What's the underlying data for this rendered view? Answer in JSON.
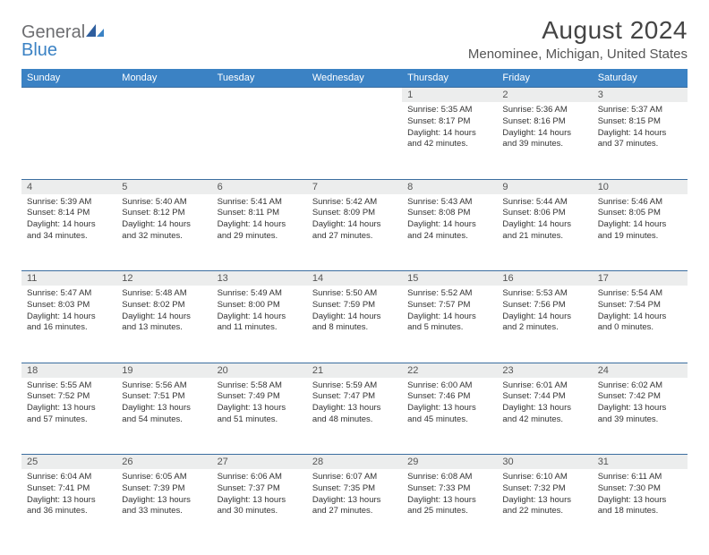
{
  "brand": {
    "name1": "General",
    "name2": "Blue"
  },
  "title": "August 2024",
  "location": "Menominee, Michigan, United States",
  "colors": {
    "header_bg": "#3b82c4",
    "header_text": "#ffffff",
    "daynum_bg": "#eceded",
    "row_border": "#3b6ea0",
    "logo_gray": "#6d6e71",
    "logo_blue": "#3b82c4"
  },
  "weekdays": [
    "Sunday",
    "Monday",
    "Tuesday",
    "Wednesday",
    "Thursday",
    "Friday",
    "Saturday"
  ],
  "weeks": [
    [
      null,
      null,
      null,
      null,
      {
        "n": "1",
        "sunrise": "5:35 AM",
        "sunset": "8:17 PM",
        "dl1": "Daylight: 14 hours",
        "dl2": "and 42 minutes."
      },
      {
        "n": "2",
        "sunrise": "5:36 AM",
        "sunset": "8:16 PM",
        "dl1": "Daylight: 14 hours",
        "dl2": "and 39 minutes."
      },
      {
        "n": "3",
        "sunrise": "5:37 AM",
        "sunset": "8:15 PM",
        "dl1": "Daylight: 14 hours",
        "dl2": "and 37 minutes."
      }
    ],
    [
      {
        "n": "4",
        "sunrise": "5:39 AM",
        "sunset": "8:14 PM",
        "dl1": "Daylight: 14 hours",
        "dl2": "and 34 minutes."
      },
      {
        "n": "5",
        "sunrise": "5:40 AM",
        "sunset": "8:12 PM",
        "dl1": "Daylight: 14 hours",
        "dl2": "and 32 minutes."
      },
      {
        "n": "6",
        "sunrise": "5:41 AM",
        "sunset": "8:11 PM",
        "dl1": "Daylight: 14 hours",
        "dl2": "and 29 minutes."
      },
      {
        "n": "7",
        "sunrise": "5:42 AM",
        "sunset": "8:09 PM",
        "dl1": "Daylight: 14 hours",
        "dl2": "and 27 minutes."
      },
      {
        "n": "8",
        "sunrise": "5:43 AM",
        "sunset": "8:08 PM",
        "dl1": "Daylight: 14 hours",
        "dl2": "and 24 minutes."
      },
      {
        "n": "9",
        "sunrise": "5:44 AM",
        "sunset": "8:06 PM",
        "dl1": "Daylight: 14 hours",
        "dl2": "and 21 minutes."
      },
      {
        "n": "10",
        "sunrise": "5:46 AM",
        "sunset": "8:05 PM",
        "dl1": "Daylight: 14 hours",
        "dl2": "and 19 minutes."
      }
    ],
    [
      {
        "n": "11",
        "sunrise": "5:47 AM",
        "sunset": "8:03 PM",
        "dl1": "Daylight: 14 hours",
        "dl2": "and 16 minutes."
      },
      {
        "n": "12",
        "sunrise": "5:48 AM",
        "sunset": "8:02 PM",
        "dl1": "Daylight: 14 hours",
        "dl2": "and 13 minutes."
      },
      {
        "n": "13",
        "sunrise": "5:49 AM",
        "sunset": "8:00 PM",
        "dl1": "Daylight: 14 hours",
        "dl2": "and 11 minutes."
      },
      {
        "n": "14",
        "sunrise": "5:50 AM",
        "sunset": "7:59 PM",
        "dl1": "Daylight: 14 hours",
        "dl2": "and 8 minutes."
      },
      {
        "n": "15",
        "sunrise": "5:52 AM",
        "sunset": "7:57 PM",
        "dl1": "Daylight: 14 hours",
        "dl2": "and 5 minutes."
      },
      {
        "n": "16",
        "sunrise": "5:53 AM",
        "sunset": "7:56 PM",
        "dl1": "Daylight: 14 hours",
        "dl2": "and 2 minutes."
      },
      {
        "n": "17",
        "sunrise": "5:54 AM",
        "sunset": "7:54 PM",
        "dl1": "Daylight: 14 hours",
        "dl2": "and 0 minutes."
      }
    ],
    [
      {
        "n": "18",
        "sunrise": "5:55 AM",
        "sunset": "7:52 PM",
        "dl1": "Daylight: 13 hours",
        "dl2": "and 57 minutes."
      },
      {
        "n": "19",
        "sunrise": "5:56 AM",
        "sunset": "7:51 PM",
        "dl1": "Daylight: 13 hours",
        "dl2": "and 54 minutes."
      },
      {
        "n": "20",
        "sunrise": "5:58 AM",
        "sunset": "7:49 PM",
        "dl1": "Daylight: 13 hours",
        "dl2": "and 51 minutes."
      },
      {
        "n": "21",
        "sunrise": "5:59 AM",
        "sunset": "7:47 PM",
        "dl1": "Daylight: 13 hours",
        "dl2": "and 48 minutes."
      },
      {
        "n": "22",
        "sunrise": "6:00 AM",
        "sunset": "7:46 PM",
        "dl1": "Daylight: 13 hours",
        "dl2": "and 45 minutes."
      },
      {
        "n": "23",
        "sunrise": "6:01 AM",
        "sunset": "7:44 PM",
        "dl1": "Daylight: 13 hours",
        "dl2": "and 42 minutes."
      },
      {
        "n": "24",
        "sunrise": "6:02 AM",
        "sunset": "7:42 PM",
        "dl1": "Daylight: 13 hours",
        "dl2": "and 39 minutes."
      }
    ],
    [
      {
        "n": "25",
        "sunrise": "6:04 AM",
        "sunset": "7:41 PM",
        "dl1": "Daylight: 13 hours",
        "dl2": "and 36 minutes."
      },
      {
        "n": "26",
        "sunrise": "6:05 AM",
        "sunset": "7:39 PM",
        "dl1": "Daylight: 13 hours",
        "dl2": "and 33 minutes."
      },
      {
        "n": "27",
        "sunrise": "6:06 AM",
        "sunset": "7:37 PM",
        "dl1": "Daylight: 13 hours",
        "dl2": "and 30 minutes."
      },
      {
        "n": "28",
        "sunrise": "6:07 AM",
        "sunset": "7:35 PM",
        "dl1": "Daylight: 13 hours",
        "dl2": "and 27 minutes."
      },
      {
        "n": "29",
        "sunrise": "6:08 AM",
        "sunset": "7:33 PM",
        "dl1": "Daylight: 13 hours",
        "dl2": "and 25 minutes."
      },
      {
        "n": "30",
        "sunrise": "6:10 AM",
        "sunset": "7:32 PM",
        "dl1": "Daylight: 13 hours",
        "dl2": "and 22 minutes."
      },
      {
        "n": "31",
        "sunrise": "6:11 AM",
        "sunset": "7:30 PM",
        "dl1": "Daylight: 13 hours",
        "dl2": "and 18 minutes."
      }
    ]
  ]
}
